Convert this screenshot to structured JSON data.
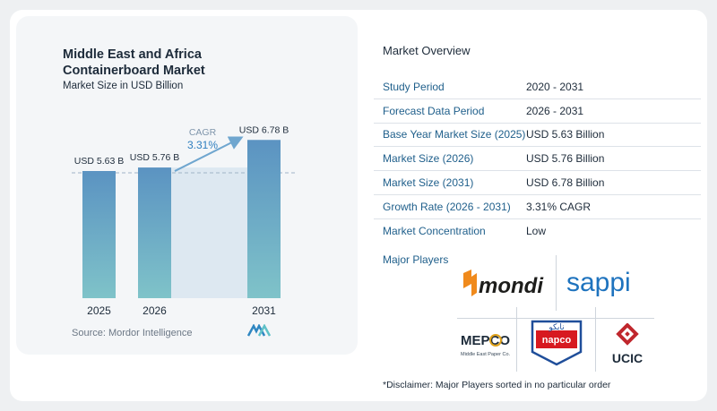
{
  "chart": {
    "title": "Middle East and Africa Containerboard Market",
    "subtitle": "Market Size in USD Billion",
    "source": "Source:  Mordor Intelligence",
    "cagr_label": "CAGR",
    "cagr_value": "3.31%"
  },
  "chart_data": {
    "type": "bar",
    "title": "Middle East and Africa Containerboard Market",
    "subtitle": "Market Size in USD Billion",
    "categories": [
      "2025",
      "2026",
      "2031"
    ],
    "values": [
      5.63,
      5.76,
      6.78
    ],
    "data_labels": [
      "USD 5.63 B",
      "USD 5.76 B",
      "USD 6.78 B"
    ],
    "ylabel": "",
    "xlabel": "",
    "annotation": "CAGR 3.31%",
    "colors": {
      "bar_top": "#5b93c2",
      "bar_bottom": "#7fc3c9",
      "gap_shade": "#dde8f1",
      "arrow": "#6fa6cf"
    }
  },
  "overview": {
    "title": "Market Overview",
    "rows": [
      {
        "label": "Study Period",
        "value": "2020 - 2031"
      },
      {
        "label": "Forecast Data Period",
        "value": "2026 - 2031"
      },
      {
        "label": "Base Year Market Size (2025)",
        "value": "USD 5.63 Billion"
      },
      {
        "label": "Market Size (2026)",
        "value": "USD 5.76 Billion"
      },
      {
        "label": "Market Size (2031)",
        "value": "USD 6.78 Billion"
      },
      {
        "label": "Growth Rate (2026 - 2031)",
        "value": "3.31% CAGR"
      },
      {
        "label": "Market Concentration",
        "value": "Low"
      }
    ],
    "major_players_label": "Major Players",
    "disclaimer": "*Disclaimer: Major Players sorted in no particular order"
  },
  "players": {
    "mondi": "mondi",
    "sappi": "sappi",
    "mepco": "MEPCO",
    "mepco_sub": "Middle East Paper Co.",
    "napco": "napco",
    "napco_ar": "نابكو",
    "ucic": "UCIC"
  }
}
